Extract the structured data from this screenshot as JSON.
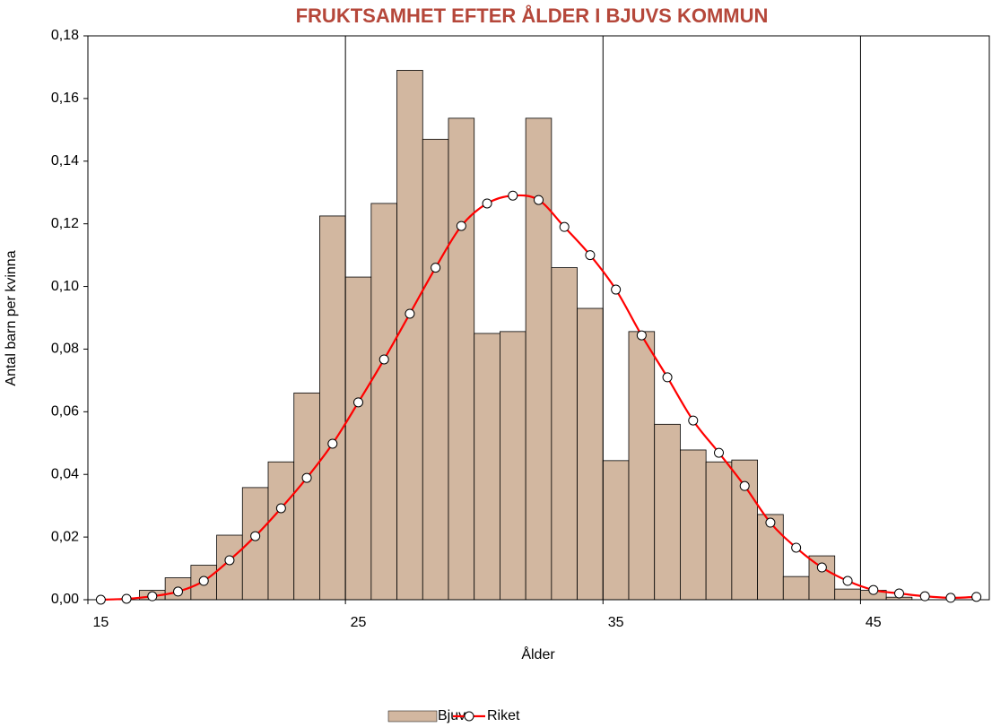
{
  "chart_data": {
    "type": "bar-line",
    "title": "FRUKTSAMHET EFTER ÅLDER I BJUVS KOMMUN",
    "x_label": "Ålder",
    "y_label": "Antal barn per kvinna",
    "x": [
      15,
      16,
      17,
      18,
      19,
      20,
      21,
      22,
      23,
      24,
      25,
      26,
      27,
      28,
      29,
      30,
      31,
      32,
      33,
      34,
      35,
      36,
      37,
      38,
      39,
      40,
      41,
      42,
      43,
      44,
      45,
      46,
      47,
      48,
      49
    ],
    "series": [
      {
        "name": "Bjuv",
        "type": "bar",
        "color": "#d2b7a0",
        "values": [
          0,
          0,
          0.003,
          0.007,
          0.011,
          0.0206,
          0.0358,
          0.044,
          0.066,
          0.1225,
          0.103,
          0.1265,
          0.169,
          0.147,
          0.1537,
          0.085,
          0.0856,
          0.1537,
          0.106,
          0.093,
          0.0444,
          0.0856,
          0.056,
          0.0478,
          0.044,
          0.0446,
          0.0272,
          0.0074,
          0.014,
          0.0034,
          0.003,
          0.0008,
          0,
          0,
          0
        ]
      },
      {
        "name": "Riket",
        "type": "line",
        "color": "#ff0000",
        "values": [
          0,
          0.0003,
          0.0011,
          0.0026,
          0.006,
          0.0126,
          0.0203,
          0.0292,
          0.0389,
          0.0498,
          0.063,
          0.0767,
          0.0913,
          0.106,
          0.1193,
          0.1265,
          0.129,
          0.1276,
          0.119,
          0.11,
          0.099,
          0.0844,
          0.071,
          0.0572,
          0.0469,
          0.0363,
          0.0246,
          0.0166,
          0.0103,
          0.006,
          0.0031,
          0.002,
          0.0011,
          0.0006,
          0.0009
        ]
      }
    ],
    "xlim": [
      15,
      50
    ],
    "xticks": [
      15,
      25,
      35,
      45
    ],
    "ylim": [
      0,
      0.18
    ],
    "yticks": [
      {
        "value": 0,
        "label": "0,00"
      },
      {
        "value": 0.02,
        "label": "0,02"
      },
      {
        "value": 0.04,
        "label": "0,04"
      },
      {
        "value": 0.06,
        "label": "0,06"
      },
      {
        "value": 0.08,
        "label": "0,08"
      },
      {
        "value": 0.1,
        "label": "0,10"
      },
      {
        "value": 0.12,
        "label": "0,12"
      },
      {
        "value": 0.14,
        "label": "0,14"
      },
      {
        "value": 0.16,
        "label": "0,16"
      },
      {
        "value": 0.18,
        "label": "0,18"
      }
    ],
    "grid": "x",
    "legend": "bottom"
  }
}
